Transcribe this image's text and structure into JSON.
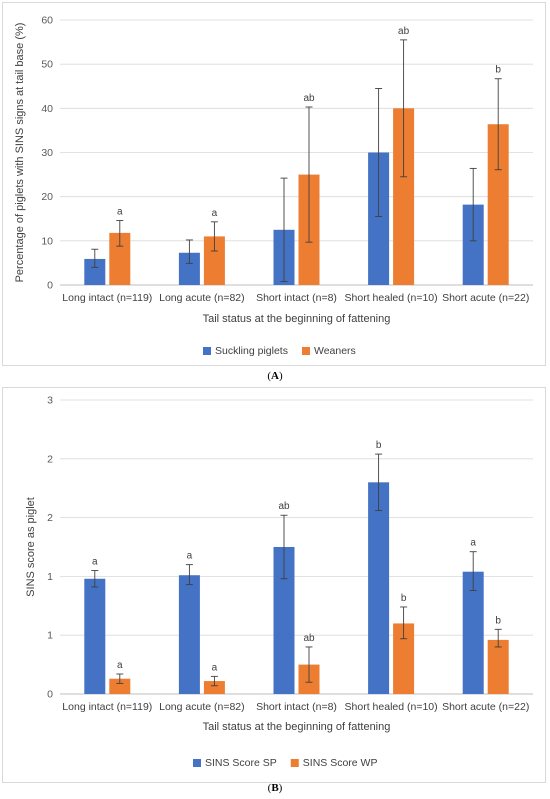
{
  "captions": {
    "a": "A",
    "b": "B"
  },
  "chart_data": [
    {
      "type": "bar",
      "panel": "A",
      "categories": [
        "Long intact (n=119)",
        "Long acute (n=82)",
        "Short intact (n=8)",
        "Short healed (n=10)",
        "Short acute (n=22)"
      ],
      "xlabel": "Tail status at the beginning of fattening",
      "ylabel": "Percentage of piglets with SINS signs at tail base (%)",
      "ylim": [
        0,
        60
      ],
      "yticks": [
        "0",
        "10",
        "20",
        "30",
        "40",
        "50",
        "60"
      ],
      "grid": true,
      "legend_position": "bottom",
      "series": [
        {
          "name": "Suckling piglets",
          "color": "#4472c4",
          "values": [
            5.9,
            7.3,
            12.5,
            30.0,
            18.2
          ],
          "err_low": [
            4.0,
            4.9,
            0.8,
            15.5,
            10.0
          ],
          "err_high": [
            8.1,
            10.2,
            24.2,
            44.5,
            26.4
          ],
          "sig": [
            "",
            "",
            "",
            "",
            ""
          ]
        },
        {
          "name": "Weaners",
          "color": "#ed7d31",
          "values": [
            11.8,
            11.0,
            25.0,
            40.0,
            36.4
          ],
          "err_low": [
            8.8,
            7.7,
            9.7,
            24.5,
            26.1
          ],
          "err_high": [
            14.6,
            14.3,
            40.3,
            55.5,
            46.7
          ],
          "sig": [
            "a",
            "a",
            "ab",
            "ab",
            "b"
          ]
        }
      ]
    },
    {
      "type": "bar",
      "panel": "B",
      "categories": [
        "Long intact (n=119)",
        "Long acute (n=82)",
        "Short intact (n=8)",
        "Short healed (n=10)",
        "Short acute (n=22)"
      ],
      "xlabel": "Tail status at the beginning of fattening",
      "ylabel": "SINS score as piglet",
      "ylim": [
        0,
        2.5
      ],
      "yticks": [
        "0",
        "1",
        "1",
        "2",
        "2",
        "3"
      ],
      "grid": true,
      "legend_position": "bottom",
      "series": [
        {
          "name": "SINS Score SP",
          "color": "#4472c4",
          "values": [
            0.98,
            1.01,
            1.25,
            1.8,
            1.04
          ],
          "err_low": [
            0.91,
            0.93,
            0.98,
            1.56,
            0.88
          ],
          "err_high": [
            1.05,
            1.1,
            1.52,
            2.04,
            1.21
          ],
          "sig": [
            "a",
            "a",
            "ab",
            "b",
            "a"
          ]
        },
        {
          "name": "SINS Score WP",
          "color": "#ed7d31",
          "values": [
            0.13,
            0.11,
            0.25,
            0.6,
            0.46
          ],
          "err_low": [
            0.09,
            0.07,
            0.1,
            0.47,
            0.4
          ],
          "err_high": [
            0.17,
            0.15,
            0.4,
            0.74,
            0.55
          ],
          "sig": [
            "a",
            "a",
            "ab",
            "b",
            "b"
          ]
        }
      ]
    }
  ]
}
